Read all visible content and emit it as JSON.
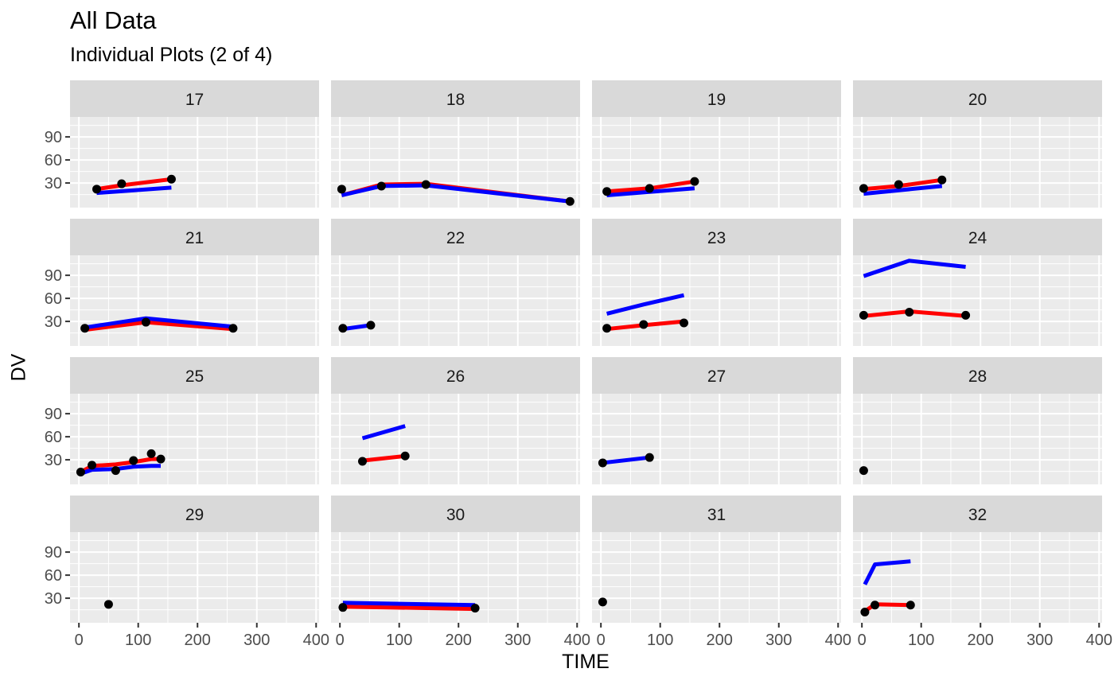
{
  "chart_data": {
    "type": "line",
    "title": "All Data",
    "subtitle": "Individual Plots (2 of 4)",
    "xlabel": "TIME",
    "ylabel": "DV",
    "xlim": [
      -15,
      405
    ],
    "ylim": [
      -2,
      116
    ],
    "xticks": [
      0,
      100,
      200,
      300,
      400
    ],
    "xtick_labels": [
      "0",
      "100",
      "200",
      "300",
      "400"
    ],
    "yticks": [
      30,
      60,
      90
    ],
    "ytick_labels": [
      "30",
      "60",
      "90"
    ],
    "grid": true,
    "facet_layout": {
      "rows": 4,
      "cols": 4
    },
    "series_styles": {
      "observed": {
        "type": "scatter",
        "color": "#000000"
      },
      "red_line": {
        "type": "line",
        "color": "#ff0000"
      },
      "blue_line": {
        "type": "line",
        "color": "#0000ff"
      }
    },
    "panels": [
      {
        "label": "17",
        "points": [
          [
            30,
            22
          ],
          [
            72,
            29
          ],
          [
            156,
            35
          ]
        ],
        "red": [
          [
            30,
            22
          ],
          [
            72,
            27
          ],
          [
            156,
            35
          ]
        ],
        "blue": [
          [
            30,
            17
          ],
          [
            156,
            24
          ]
        ]
      },
      {
        "label": "18",
        "points": [
          [
            3,
            22
          ],
          [
            70,
            26
          ],
          [
            145,
            28
          ],
          [
            388,
            6
          ]
        ],
        "red": [
          [
            3,
            14
          ],
          [
            70,
            28
          ],
          [
            145,
            29
          ],
          [
            388,
            6
          ]
        ],
        "blue": [
          [
            3,
            14
          ],
          [
            70,
            26
          ],
          [
            145,
            27
          ],
          [
            388,
            6
          ]
        ]
      },
      {
        "label": "19",
        "points": [
          [
            10,
            19
          ],
          [
            82,
            23
          ],
          [
            158,
            32
          ]
        ],
        "red": [
          [
            10,
            19
          ],
          [
            82,
            23
          ],
          [
            158,
            32
          ]
        ],
        "blue": [
          [
            10,
            14
          ],
          [
            158,
            23
          ]
        ]
      },
      {
        "label": "20",
        "points": [
          [
            3,
            23
          ],
          [
            62,
            28
          ],
          [
            135,
            34
          ]
        ],
        "red": [
          [
            3,
            22
          ],
          [
            62,
            26
          ],
          [
            135,
            34
          ]
        ],
        "blue": [
          [
            3,
            16
          ],
          [
            135,
            26
          ]
        ]
      },
      {
        "label": "21",
        "points": [
          [
            10,
            21
          ],
          [
            113,
            29
          ],
          [
            260,
            21
          ]
        ],
        "red": [
          [
            10,
            19
          ],
          [
            113,
            29
          ],
          [
            260,
            20
          ]
        ],
        "blue": [
          [
            10,
            22
          ],
          [
            113,
            34
          ],
          [
            260,
            23
          ]
        ]
      },
      {
        "label": "22",
        "points": [
          [
            5,
            21
          ],
          [
            52,
            25
          ]
        ],
        "red": [],
        "blue": [
          [
            5,
            20
          ],
          [
            52,
            25
          ]
        ]
      },
      {
        "label": "23",
        "points": [
          [
            10,
            21
          ],
          [
            72,
            26
          ],
          [
            140,
            28
          ]
        ],
        "red": [
          [
            10,
            20
          ],
          [
            72,
            25
          ],
          [
            140,
            30
          ]
        ],
        "blue": [
          [
            10,
            40
          ],
          [
            72,
            52
          ],
          [
            140,
            64
          ]
        ]
      },
      {
        "label": "24",
        "points": [
          [
            3,
            38
          ],
          [
            80,
            42
          ],
          [
            175,
            38
          ]
        ],
        "red": [
          [
            3,
            37
          ],
          [
            80,
            43
          ],
          [
            175,
            37
          ]
        ],
        "blue": [
          [
            3,
            89
          ],
          [
            80,
            109
          ],
          [
            175,
            101
          ]
        ]
      },
      {
        "label": "25",
        "points": [
          [
            3,
            14
          ],
          [
            22,
            23
          ],
          [
            62,
            16
          ],
          [
            92,
            29
          ],
          [
            122,
            38
          ],
          [
            138,
            31
          ]
        ],
        "red": [
          [
            3,
            14
          ],
          [
            22,
            22
          ],
          [
            62,
            24
          ],
          [
            92,
            27
          ],
          [
            122,
            31
          ],
          [
            138,
            31
          ]
        ],
        "blue": [
          [
            3,
            12
          ],
          [
            22,
            17
          ],
          [
            62,
            18
          ],
          [
            92,
            21
          ],
          [
            122,
            22
          ],
          [
            138,
            22
          ]
        ]
      },
      {
        "label": "26",
        "points": [
          [
            38,
            28
          ],
          [
            110,
            35
          ]
        ],
        "red": [
          [
            38,
            29
          ],
          [
            110,
            35
          ]
        ],
        "blue": [
          [
            38,
            58
          ],
          [
            110,
            74
          ]
        ]
      },
      {
        "label": "27",
        "points": [
          [
            3,
            26
          ],
          [
            82,
            33
          ]
        ],
        "red": [],
        "blue": [
          [
            3,
            26
          ],
          [
            82,
            33
          ]
        ]
      },
      {
        "label": "28",
        "points": [
          [
            3,
            16
          ]
        ],
        "red": [],
        "blue": []
      },
      {
        "label": "29",
        "points": [
          [
            50,
            22
          ]
        ],
        "red": [],
        "blue": []
      },
      {
        "label": "30",
        "points": [
          [
            5,
            18
          ],
          [
            228,
            17
          ]
        ],
        "red": [
          [
            5,
            19
          ],
          [
            228,
            16
          ]
        ],
        "blue": [
          [
            5,
            24
          ],
          [
            228,
            21
          ]
        ]
      },
      {
        "label": "31",
        "points": [
          [
            3,
            25
          ]
        ],
        "red": [],
        "blue": []
      },
      {
        "label": "32",
        "points": [
          [
            5,
            12
          ],
          [
            22,
            21
          ],
          [
            82,
            21
          ]
        ],
        "red": [
          [
            5,
            13
          ],
          [
            22,
            22
          ],
          [
            82,
            21
          ]
        ],
        "blue": [
          [
            5,
            48
          ],
          [
            22,
            74
          ],
          [
            82,
            78
          ]
        ]
      }
    ]
  }
}
